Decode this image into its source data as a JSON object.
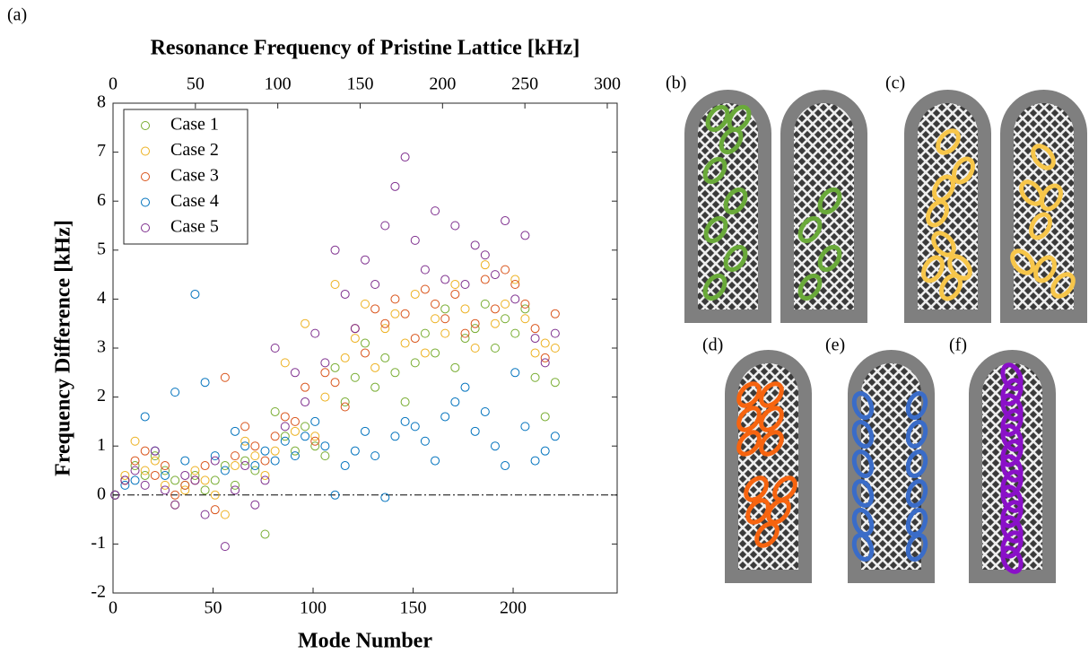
{
  "chart_data": {
    "type": "scatter",
    "title": "Resonance Frequency of Pristine Lattice [kHz]",
    "xlabel": "Mode Number",
    "ylabel": "Frequency Difference [kHz]",
    "xlim": [
      0,
      252
    ],
    "xticks": [
      0,
      50,
      100,
      150,
      200
    ],
    "x2lim": [
      0,
      306
    ],
    "x2ticks": [
      0,
      50,
      100,
      150,
      200,
      250,
      300
    ],
    "ylim": [
      -2,
      8
    ],
    "yticks": [
      -2,
      -1,
      0,
      1,
      2,
      3,
      4,
      5,
      6,
      7,
      8
    ],
    "reference_line": 0,
    "legend": "upper-left",
    "x": [
      1,
      6,
      11,
      16,
      21,
      26,
      31,
      36,
      41,
      46,
      51,
      56,
      61,
      66,
      71,
      76,
      81,
      86,
      91,
      96,
      101,
      106,
      111,
      116,
      121,
      126,
      131,
      136,
      141,
      146,
      151,
      156,
      161,
      166,
      171,
      176,
      181,
      186,
      191,
      196,
      201,
      206,
      211,
      216,
      221
    ],
    "series": [
      {
        "name": "Case 1",
        "color": "#77ac30",
        "values": [
          0,
          0.3,
          0.6,
          0.4,
          0.8,
          0.5,
          0.3,
          0.2,
          0.4,
          0.1,
          0.3,
          0.6,
          0.2,
          0.7,
          0.5,
          -0.8,
          1.7,
          1.2,
          0.9,
          1.4,
          1.0,
          0.8,
          2.6,
          1.9,
          2.4,
          3.1,
          2.2,
          2.8,
          2.5,
          1.9,
          2.7,
          3.3,
          2.9,
          3.8,
          2.6,
          3.2,
          3.4,
          3.9,
          3.0,
          3.6,
          3.3,
          3.8,
          2.4,
          1.6,
          2.3
        ]
      },
      {
        "name": "Case 2",
        "color": "#edb120",
        "values": [
          0,
          0.4,
          1.1,
          0.5,
          0.7,
          0.2,
          -0.2,
          0.1,
          0.5,
          0.3,
          0.0,
          -0.4,
          0.6,
          1.1,
          0.8,
          0.4,
          0.9,
          2.7,
          1.3,
          3.5,
          1.2,
          2.0,
          4.3,
          2.8,
          3.2,
          3.9,
          2.6,
          3.4,
          3.7,
          3.1,
          4.1,
          2.9,
          3.6,
          3.3,
          4.3,
          3.8,
          3.0,
          4.7,
          3.5,
          3.9,
          4.4,
          3.6,
          2.9,
          3.1,
          3.0
        ]
      },
      {
        "name": "Case 3",
        "color": "#d95319",
        "values": [
          0,
          0.3,
          0.7,
          0.9,
          0.4,
          0.6,
          0.0,
          0.2,
          0.3,
          0.6,
          -0.3,
          2.4,
          0.8,
          1.4,
          1.0,
          0.7,
          1.2,
          1.6,
          1.5,
          2.2,
          1.1,
          2.5,
          2.3,
          1.8,
          3.4,
          2.9,
          3.8,
          3.5,
          4.0,
          3.7,
          3.2,
          4.2,
          3.9,
          3.6,
          4.1,
          3.3,
          3.5,
          4.4,
          3.8,
          4.6,
          4.3,
          3.9,
          3.4,
          2.8,
          3.7
        ]
      },
      {
        "name": "Case 4",
        "color": "#0072bd",
        "values": [
          0,
          0.2,
          0.3,
          1.6,
          0.9,
          0.4,
          2.1,
          0.7,
          4.1,
          2.3,
          0.8,
          0.5,
          1.3,
          1.0,
          0.6,
          0.9,
          0.7,
          1.1,
          0.8,
          1.2,
          1.5,
          1.0,
          0.0,
          0.6,
          0.9,
          1.3,
          0.8,
          -0.05,
          1.2,
          1.5,
          1.4,
          1.1,
          0.7,
          1.6,
          1.9,
          2.2,
          1.3,
          1.7,
          1.0,
          0.6,
          2.5,
          1.4,
          0.7,
          0.9,
          1.2
        ]
      },
      {
        "name": "Case 5",
        "color": "#7e2f8e",
        "values": [
          0,
          0.3,
          0.5,
          0.2,
          0.9,
          0.1,
          -0.2,
          0.4,
          0.3,
          -0.4,
          0.7,
          -1.05,
          0.1,
          0.6,
          -0.2,
          0.3,
          3.0,
          1.4,
          2.5,
          1.9,
          3.3,
          2.7,
          5.0,
          4.1,
          3.4,
          4.8,
          4.3,
          5.5,
          6.3,
          6.9,
          5.2,
          4.6,
          5.8,
          4.4,
          5.5,
          4.3,
          5.1,
          4.9,
          4.5,
          5.6,
          4.0,
          5.3,
          3.2,
          2.7,
          3.3
        ]
      }
    ]
  },
  "panel_labels": [
    "(a)",
    "(b)",
    "(c)",
    "(d)",
    "(e)",
    "(f)"
  ]
}
